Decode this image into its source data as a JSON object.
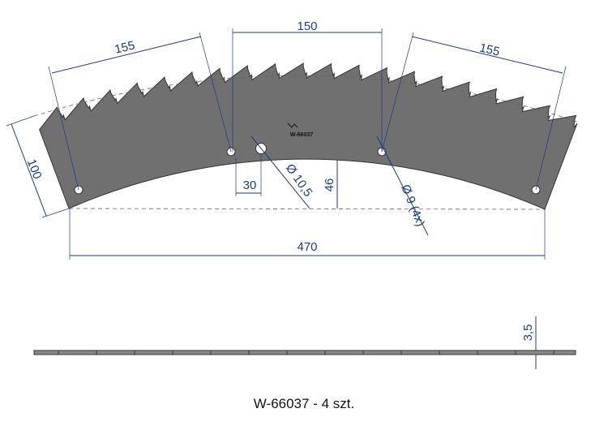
{
  "drawing": {
    "dimensions": {
      "top_left": "155",
      "top_center": "150",
      "top_right": "155",
      "left_height": "100",
      "hole_offset": "30",
      "hole_large": "Ø 10,5",
      "inner_height": "46",
      "hole_small": "Ø 9 (4x)",
      "width": "470",
      "thickness": "3,5"
    },
    "engraving": "W-66037"
  },
  "caption": "W-66037 - 4 szt."
}
